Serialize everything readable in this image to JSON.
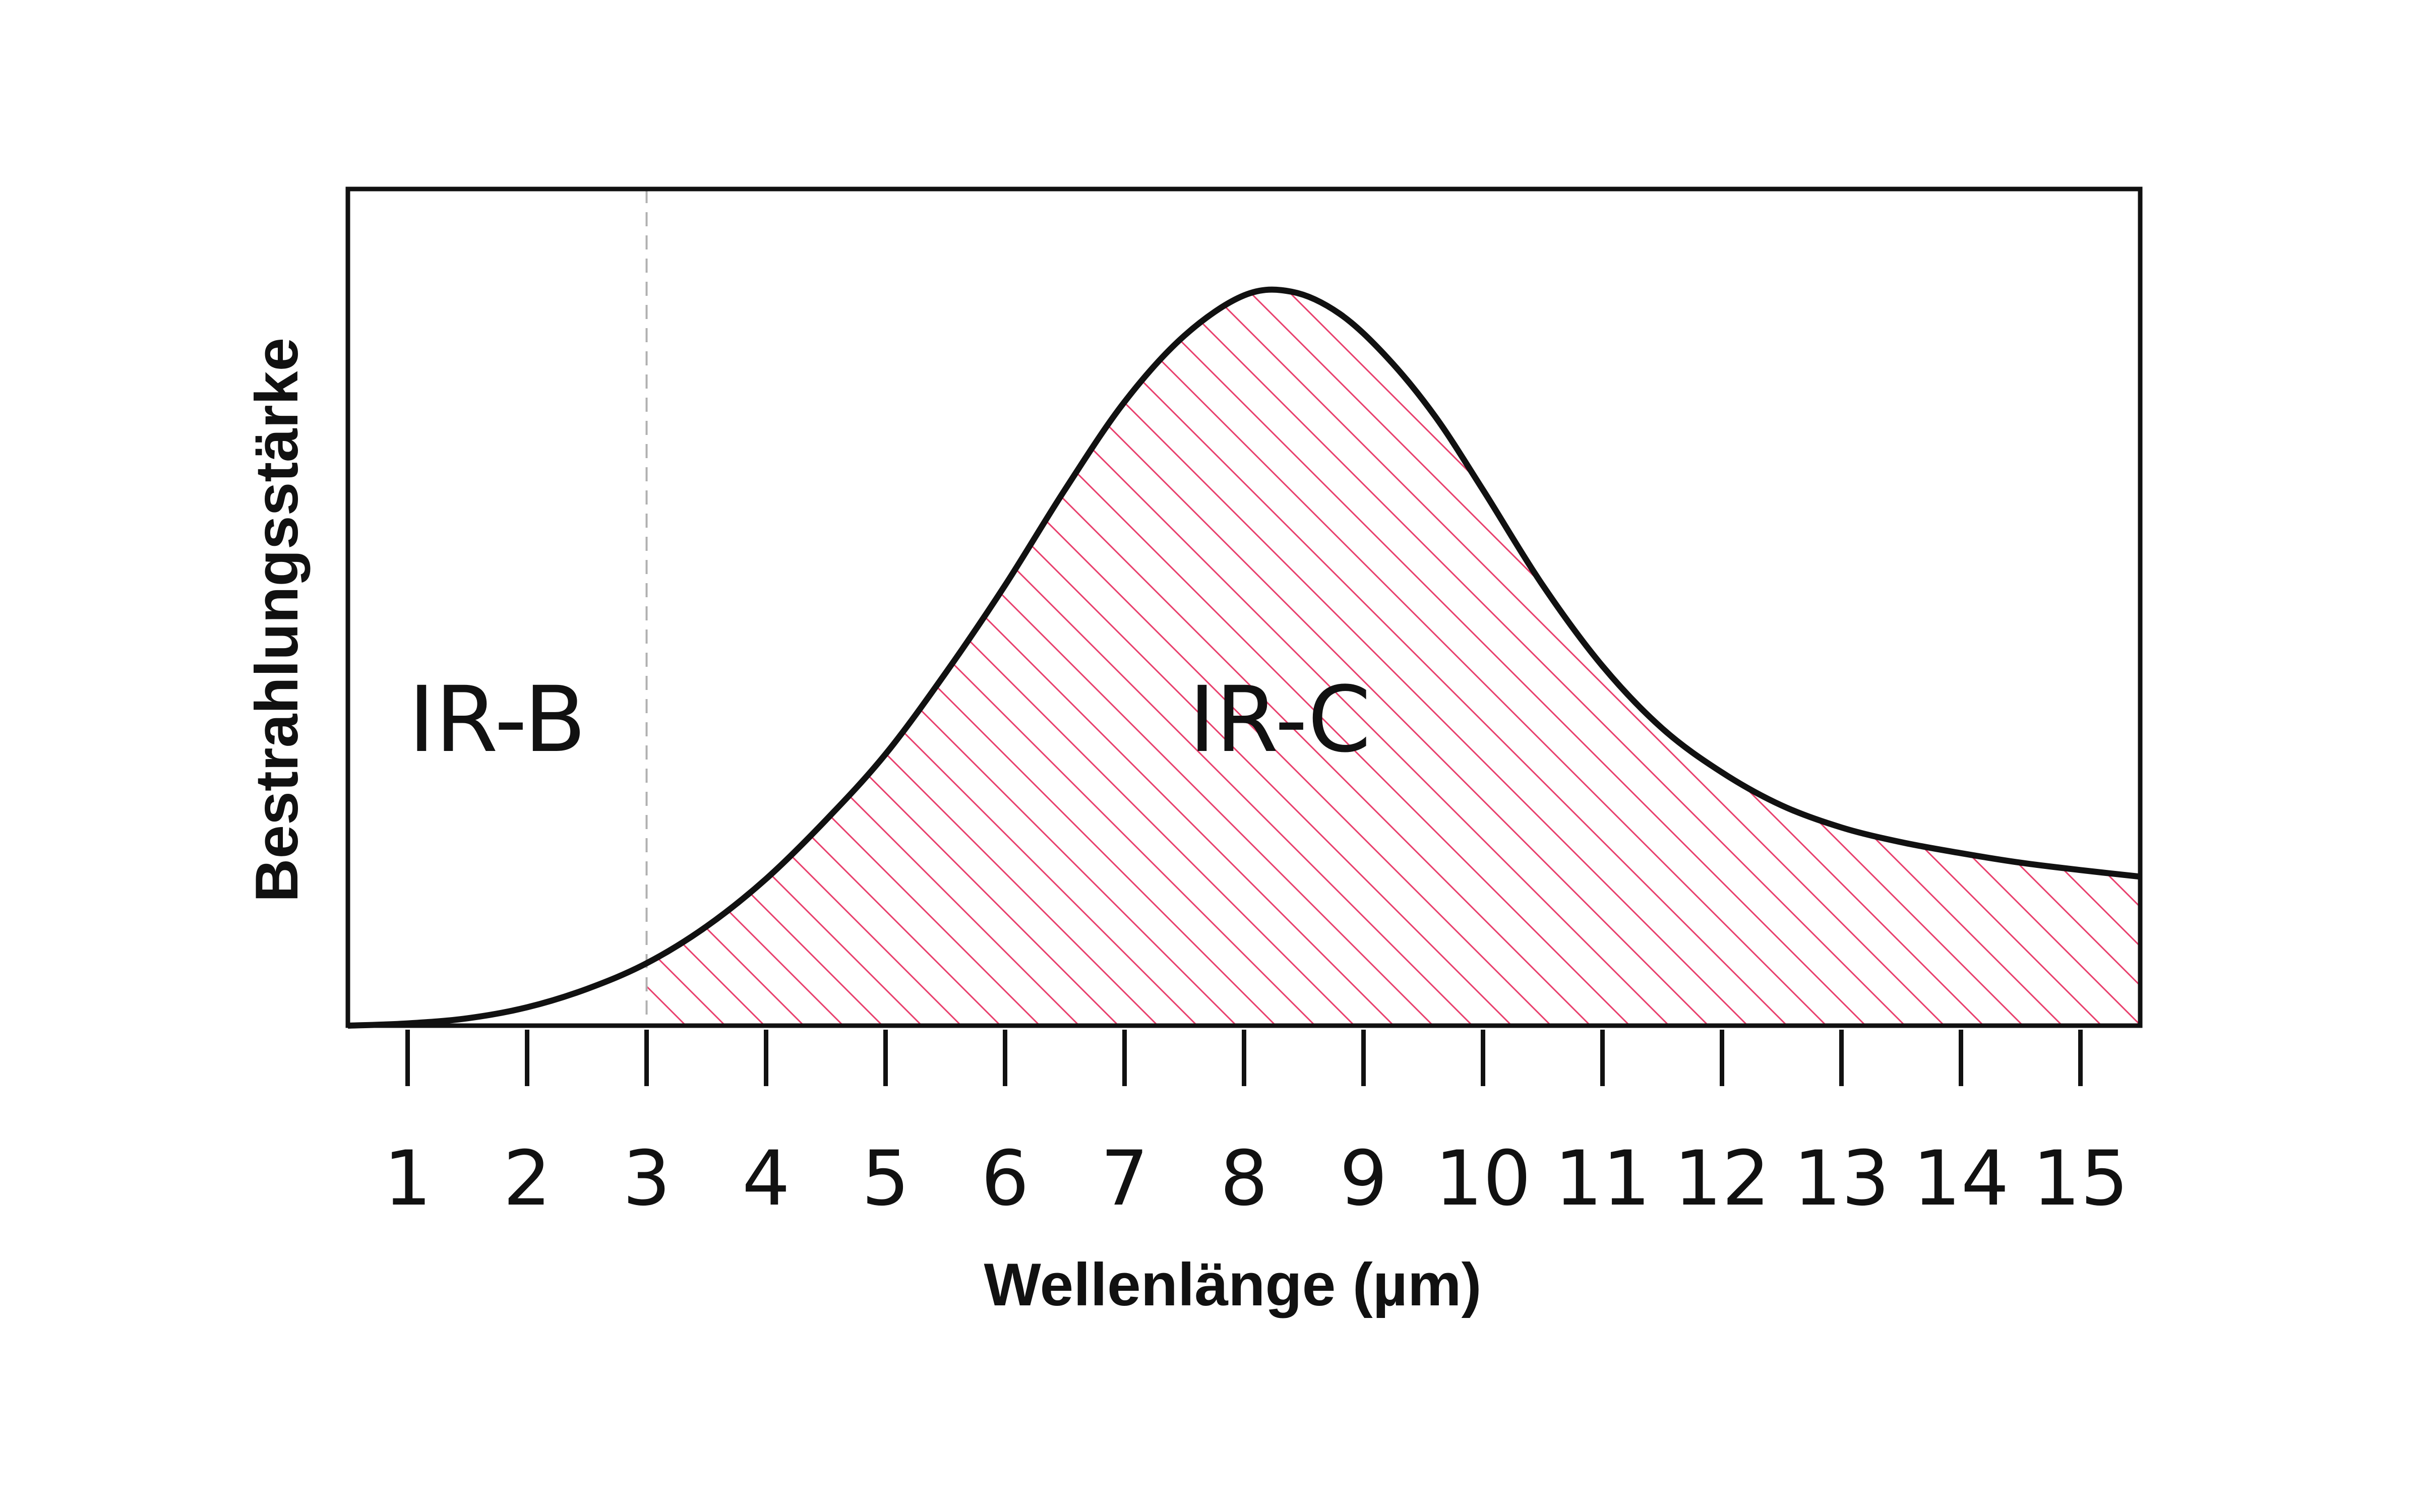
{
  "chart_data": {
    "type": "area",
    "xlabel": "Wellenlänge (µm)",
    "ylabel": "Bestrahlungsstärke",
    "xlim": [
      0.5,
      15.5
    ],
    "ylim": [
      0,
      1.14
    ],
    "x_ticks": [
      1,
      2,
      3,
      4,
      5,
      6,
      7,
      8,
      9,
      10,
      11,
      12,
      13,
      14,
      15
    ],
    "grid": false,
    "y_tick_labels": false,
    "series": [
      {
        "x": [
          0.5,
          1,
          1.5,
          2,
          2.5,
          3,
          3.5,
          4,
          4.5,
          5,
          5.5,
          6,
          6.5,
          7,
          7.5,
          8,
          8.4,
          8.8,
          9.2,
          9.6,
          10,
          10.5,
          11,
          11.5,
          12,
          12.5,
          13,
          13.5,
          14,
          14.5,
          15,
          15.5
        ],
        "y": [
          0.0,
          0.003,
          0.01,
          0.025,
          0.05,
          0.085,
          0.135,
          0.2,
          0.28,
          0.37,
          0.48,
          0.6,
          0.73,
          0.85,
          0.94,
          0.995,
          1.0,
          0.97,
          0.91,
          0.83,
          0.73,
          0.6,
          0.49,
          0.405,
          0.345,
          0.3,
          0.27,
          0.25,
          0.235,
          0.222,
          0.212,
          0.203
        ]
      }
    ],
    "regions": [
      {
        "label": "IR-B",
        "x_range": [
          0.5,
          3
        ]
      },
      {
        "label": "IR-C",
        "x_range": [
          3,
          15.5
        ],
        "hatched": true
      }
    ],
    "boundary_x": 3,
    "colors": {
      "curve": "#111111",
      "hatch": "#e8416e",
      "boundary": "#b0b0b0",
      "axis": "#111111"
    }
  }
}
